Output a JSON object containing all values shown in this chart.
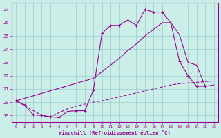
{
  "xlabel": "Windchill (Refroidissement éolien,°C)",
  "bg_color": "#cceee8",
  "grid_color": "#99cccc",
  "line_color": "#990099",
  "xlim": [
    -0.5,
    23.5
  ],
  "ylim": [
    18.5,
    27.5
  ],
  "yticks": [
    19,
    20,
    21,
    22,
    23,
    24,
    25,
    26,
    27
  ],
  "xticks": [
    0,
    1,
    2,
    3,
    4,
    5,
    6,
    7,
    8,
    9,
    10,
    11,
    12,
    13,
    14,
    15,
    16,
    17,
    18,
    19,
    20,
    21,
    22,
    23
  ],
  "curve1_x": [
    0,
    1,
    2,
    3,
    4,
    5,
    6,
    7,
    8,
    9,
    10,
    11,
    12,
    13,
    14,
    15,
    16,
    17,
    18,
    19,
    20,
    21,
    22
  ],
  "curve1_y": [
    20.1,
    19.8,
    19.05,
    19.0,
    18.9,
    18.85,
    19.3,
    19.35,
    19.35,
    20.9,
    25.2,
    25.8,
    25.8,
    26.2,
    25.8,
    27.0,
    26.8,
    26.8,
    26.0,
    23.1,
    22.0,
    21.2,
    21.2
  ],
  "curve2_x": [
    0,
    9,
    10,
    11,
    12,
    13,
    14,
    15,
    16,
    17,
    18,
    19,
    20,
    21,
    22,
    23
  ],
  "curve2_y": [
    20.1,
    21.8,
    22.3,
    22.8,
    23.3,
    23.9,
    24.4,
    25.0,
    25.5,
    26.0,
    26.0,
    25.1,
    23.0,
    22.8,
    21.2,
    21.3
  ],
  "curve3_x": [
    0,
    3,
    4,
    5,
    6,
    7,
    8,
    9,
    10,
    11,
    12,
    13,
    14,
    15,
    16,
    17,
    18,
    19,
    20,
    21,
    22,
    23
  ],
  "curve3_y": [
    20.1,
    19.0,
    18.9,
    19.2,
    19.5,
    19.7,
    19.85,
    20.0,
    20.1,
    20.25,
    20.4,
    20.55,
    20.7,
    20.85,
    21.0,
    21.15,
    21.3,
    21.4,
    21.45,
    21.5,
    21.55,
    21.6
  ]
}
